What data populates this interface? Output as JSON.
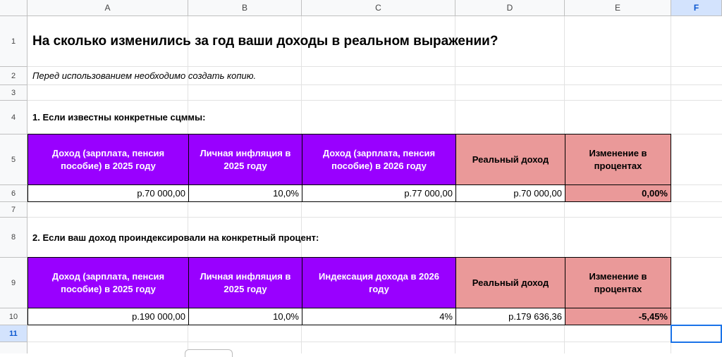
{
  "columns": [
    "A",
    "B",
    "C",
    "D",
    "E",
    "F"
  ],
  "rows": [
    "1",
    "2",
    "3",
    "4",
    "5",
    "6",
    "7",
    "8",
    "9",
    "10",
    "11"
  ],
  "title": "На сколько изменились за год ваши доходы в реальном выражении?",
  "note": "Перед использованием необходимо создать копию.",
  "section1": {
    "heading": "1. Если известны конкретные сцммы:",
    "headers": [
      "Доход (зарплата, пенсия пособие) в 2025 году",
      "Личная инфляция в 2025 году",
      "Доход (зарплата, пенсия пособие) в 2026 году",
      "Реальный доход",
      "Изменение в процентах"
    ],
    "values": [
      "р.70 000,00",
      "10,0%",
      "р.77 000,00",
      "р.70 000,00",
      "0,00%"
    ]
  },
  "section2": {
    "heading": "2. Если ваш доход проиндексировали на конкретный процент:",
    "headers": [
      "Доход (зарплата, пенсия пособие) в 2025 году",
      "Личная инфляция в 2025 году",
      "Индексация дохода в 2026 году",
      "Реальный доход",
      "Изменение в процентах"
    ],
    "values": [
      "р.190 000,00",
      "10,0%",
      "4%",
      "р.179 636,36",
      "-5,45%"
    ]
  },
  "selected_cell": "F11",
  "colors": {
    "purple_header": "#9900ff",
    "pink_header": "#ea9999",
    "selection": "#1a73e8"
  }
}
